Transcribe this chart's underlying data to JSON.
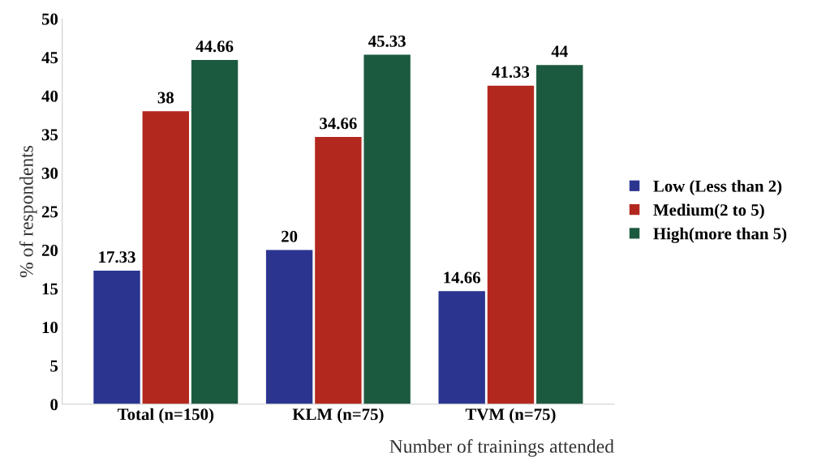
{
  "chart_data": {
    "type": "bar",
    "ylabel": "% of respondents",
    "xlabel": "Number of trainings attended",
    "categories": [
      "Total (n=150)",
      "KLM (n=75)",
      "TVM (n=75)"
    ],
    "series": [
      {
        "name": "Low (Less than 2)",
        "color": "#2b3590",
        "values": [
          17.33,
          20,
          14.66
        ]
      },
      {
        "name": "Medium(2 to 5)",
        "color": "#b3281e",
        "values": [
          38,
          34.66,
          41.33
        ]
      },
      {
        "name": "High(more than 5)",
        "color": "#1c5a3f",
        "values": [
          44.66,
          45.33,
          44
        ]
      }
    ],
    "ylim": [
      0,
      50
    ],
    "yticks": [
      0,
      5,
      10,
      15,
      20,
      25,
      30,
      35,
      40,
      45,
      50
    ],
    "data_labels": true,
    "legend": "right",
    "grid": false
  }
}
